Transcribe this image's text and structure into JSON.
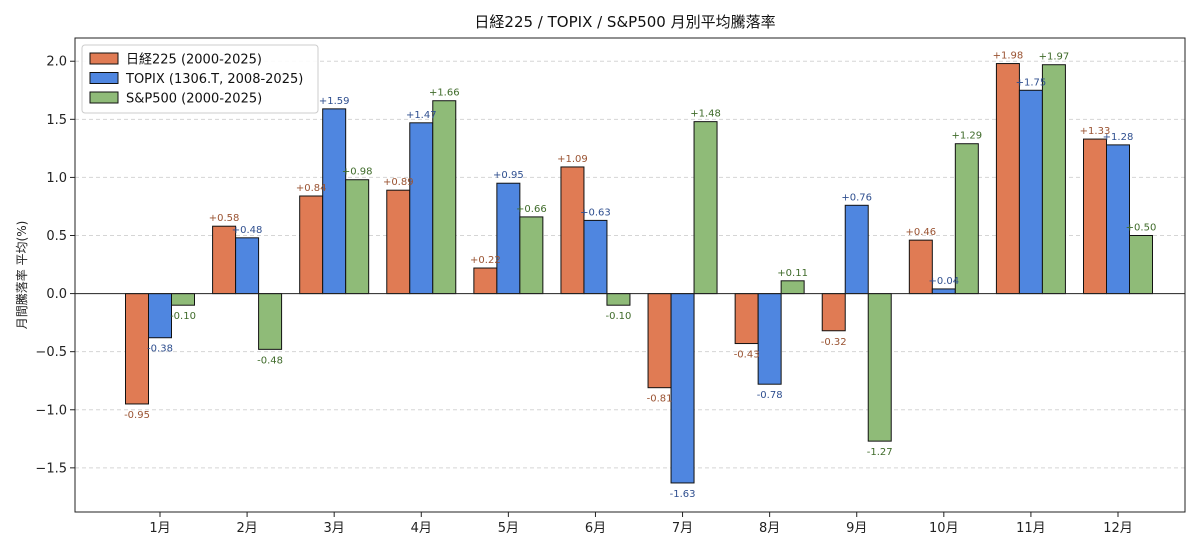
{
  "chart_data": {
    "type": "bar",
    "title": "日経225 / TOPIX / S&P500 月別平均騰落率",
    "xlabel": "",
    "ylabel": "月間騰落率 平均(%)",
    "categories": [
      "1月",
      "2月",
      "3月",
      "4月",
      "5月",
      "6月",
      "7月",
      "8月",
      "9月",
      "10月",
      "11月",
      "12月"
    ],
    "ylim": [
      -1.88,
      2.2
    ],
    "yticks": [
      -1.5,
      -1.0,
      -0.5,
      0.0,
      0.5,
      1.0,
      1.5,
      2.0
    ],
    "ytick_labels": [
      "−1.5",
      "−1.0",
      "−0.5",
      "0.0",
      "0.5",
      "1.0",
      "1.5",
      "2.0"
    ],
    "grid": true,
    "legend_position": "top-left",
    "series": [
      {
        "name": "日経225 (2000-2025)",
        "color": "#e07b54",
        "label_color": "#9a5332",
        "values": [
          -0.95,
          0.58,
          0.84,
          0.89,
          0.22,
          1.09,
          -0.81,
          -0.43,
          -0.32,
          0.46,
          1.98,
          1.33
        ],
        "labels": [
          "-0.95",
          "+0.58",
          "+0.84",
          "+0.89",
          "+0.22",
          "+1.09",
          "-0.81",
          "-0.43",
          "-0.32",
          "+0.46",
          "+1.98",
          "+1.33"
        ]
      },
      {
        "name": "TOPIX (1306.T, 2008-2025)",
        "color": "#4f86e0",
        "label_color": "#2f4f8f",
        "values": [
          -0.38,
          0.48,
          1.59,
          1.47,
          0.95,
          0.63,
          -1.63,
          -0.78,
          0.76,
          0.04,
          1.75,
          1.28
        ],
        "labels": [
          "-0.38",
          "+0.48",
          "+1.59",
          "+1.47",
          "+0.95",
          "+0.63",
          "-1.63",
          "-0.78",
          "+0.76",
          "+0.04",
          "+1.75",
          "+1.28"
        ]
      },
      {
        "name": "S&P500 (2000-2025)",
        "color": "#8fbb78",
        "label_color": "#3f6b2a",
        "values": [
          -0.1,
          -0.48,
          0.98,
          1.66,
          0.66,
          -0.1,
          1.48,
          0.11,
          -1.27,
          1.29,
          1.97,
          0.5
        ],
        "labels": [
          "-0.10",
          "-0.48",
          "+0.98",
          "+1.66",
          "+0.66",
          "-0.10",
          "+1.48",
          "+0.11",
          "-1.27",
          "+1.29",
          "+1.97",
          "+0.50"
        ]
      }
    ]
  }
}
